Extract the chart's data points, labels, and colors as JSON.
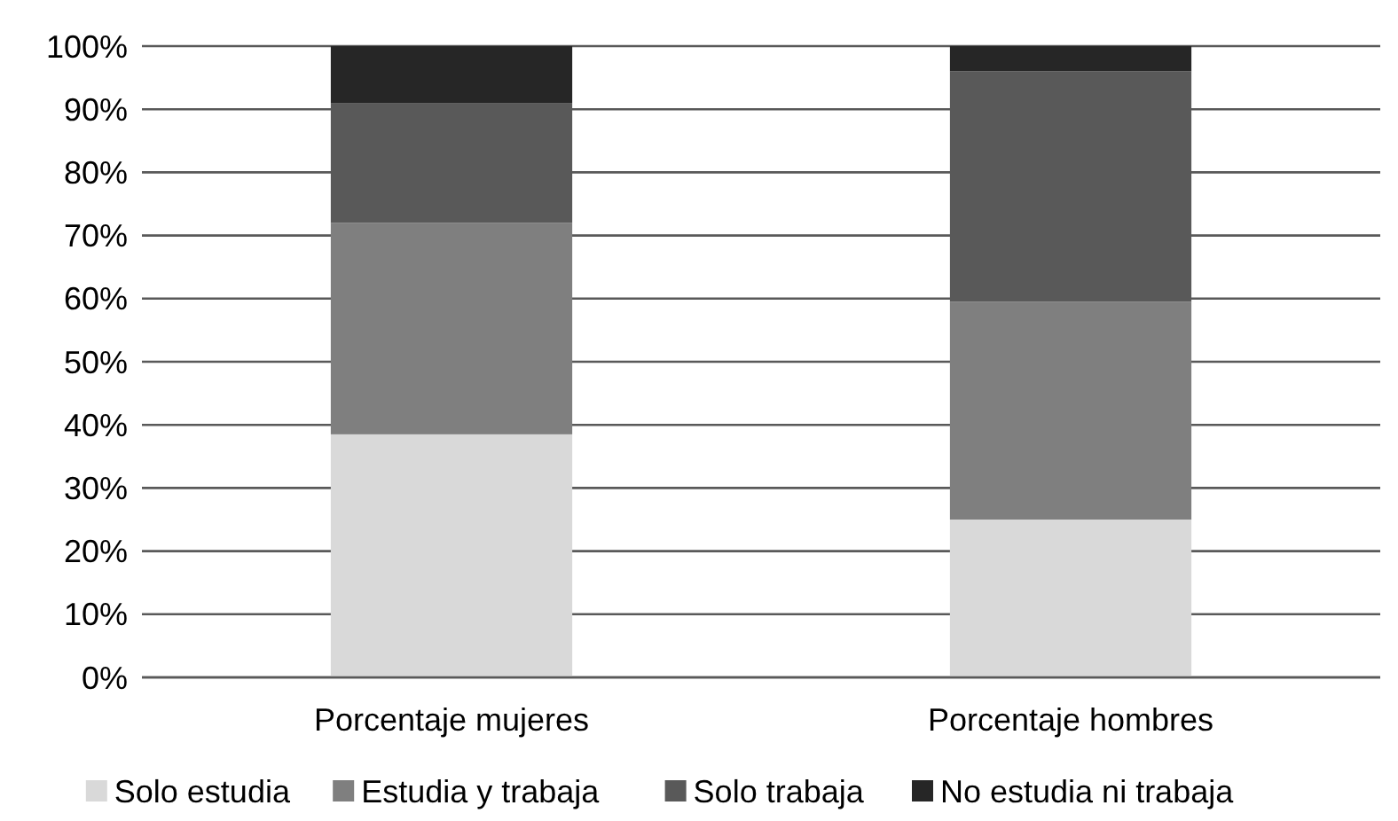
{
  "chart_data": {
    "type": "bar",
    "stacked": true,
    "categories": [
      "Porcentaje mujeres",
      "Porcentaje hombres"
    ],
    "series": [
      {
        "name": "Solo estudia",
        "color": "#d9d9d9",
        "values": [
          38.5,
          25
        ]
      },
      {
        "name": "Estudia y trabaja",
        "color": "#7f7f7f",
        "values": [
          33.5,
          34.5
        ]
      },
      {
        "name": "Solo trabaja",
        "color": "#595959",
        "values": [
          19,
          36.5
        ]
      },
      {
        "name": "No estudia ni trabaja",
        "color": "#262626",
        "values": [
          9,
          4
        ]
      }
    ],
    "ylim": [
      0,
      100
    ],
    "yticks": [
      {
        "value": 0,
        "label": "0%"
      },
      {
        "value": 10,
        "label": "10%"
      },
      {
        "value": 20,
        "label": "20%"
      },
      {
        "value": 30,
        "label": "30%"
      },
      {
        "value": 40,
        "label": "40%"
      },
      {
        "value": 50,
        "label": "50%"
      },
      {
        "value": 60,
        "label": "60%"
      },
      {
        "value": 70,
        "label": "70%"
      },
      {
        "value": 80,
        "label": "80%"
      },
      {
        "value": 90,
        "label": "90%"
      },
      {
        "value": 100,
        "label": "100%"
      }
    ],
    "grid": "y",
    "legend": "bottom"
  }
}
